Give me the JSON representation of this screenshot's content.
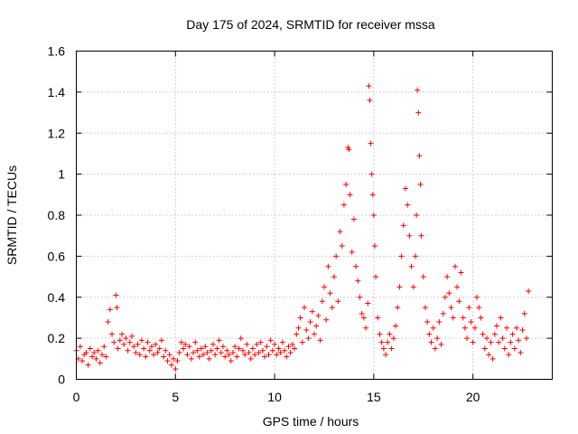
{
  "chart_data": {
    "type": "scatter",
    "title": "Day 175 of 2024, SRMTID for receiver mssa",
    "xlabel": "GPS time / hours",
    "ylabel": "SRMTID / TECUs",
    "xlim": [
      0,
      24
    ],
    "ylim": [
      0,
      1.6
    ],
    "xticks": [
      0,
      5,
      10,
      15,
      20
    ],
    "xtick_labels": [
      "0",
      "5",
      "10",
      "15",
      "20"
    ],
    "yticks": [
      0,
      0.2,
      0.4,
      0.6,
      0.8,
      1.0,
      1.2,
      1.4,
      1.6
    ],
    "ytick_labels": [
      "0",
      "0.2",
      "0.4",
      "0.6",
      "0.8",
      "1",
      "1.2",
      "1.4",
      "1.6"
    ],
    "grid": true,
    "marker": "+",
    "color": "#ff0000",
    "series": [
      {
        "name": "SRMTID",
        "points": [
          [
            0.0,
            0.14
          ],
          [
            0.1,
            0.1
          ],
          [
            0.2,
            0.16
          ],
          [
            0.3,
            0.09
          ],
          [
            0.4,
            0.12
          ],
          [
            0.5,
            0.13
          ],
          [
            0.6,
            0.07
          ],
          [
            0.7,
            0.15
          ],
          [
            0.8,
            0.11
          ],
          [
            0.9,
            0.13
          ],
          [
            1.0,
            0.1
          ],
          [
            1.1,
            0.14
          ],
          [
            1.2,
            0.08
          ],
          [
            1.3,
            0.12
          ],
          [
            1.4,
            0.16
          ],
          [
            1.5,
            0.11
          ],
          [
            1.6,
            0.28
          ],
          [
            1.7,
            0.34
          ],
          [
            1.8,
            0.22
          ],
          [
            1.9,
            0.18
          ],
          [
            2.0,
            0.41
          ],
          [
            2.05,
            0.35
          ],
          [
            2.1,
            0.15
          ],
          [
            2.2,
            0.19
          ],
          [
            2.3,
            0.22
          ],
          [
            2.4,
            0.17
          ],
          [
            2.5,
            0.2
          ],
          [
            2.6,
            0.14
          ],
          [
            2.7,
            0.18
          ],
          [
            2.8,
            0.21
          ],
          [
            2.9,
            0.16
          ],
          [
            3.0,
            0.13
          ],
          [
            3.1,
            0.17
          ],
          [
            3.2,
            0.12
          ],
          [
            3.3,
            0.19
          ],
          [
            3.4,
            0.15
          ],
          [
            3.5,
            0.11
          ],
          [
            3.6,
            0.18
          ],
          [
            3.7,
            0.14
          ],
          [
            3.8,
            0.16
          ],
          [
            3.9,
            0.12
          ],
          [
            4.0,
            0.17
          ],
          [
            4.1,
            0.13
          ],
          [
            4.2,
            0.15
          ],
          [
            4.3,
            0.19
          ],
          [
            4.4,
            0.11
          ],
          [
            4.5,
            0.14
          ],
          [
            4.6,
            0.09
          ],
          [
            4.7,
            0.12
          ],
          [
            4.8,
            0.07
          ],
          [
            4.9,
            0.1
          ],
          [
            5.0,
            0.05
          ],
          [
            5.1,
            0.09
          ],
          [
            5.2,
            0.13
          ],
          [
            5.3,
            0.18
          ],
          [
            5.4,
            0.15
          ],
          [
            5.5,
            0.17
          ],
          [
            5.6,
            0.12
          ],
          [
            5.7,
            0.16
          ],
          [
            5.8,
            0.1
          ],
          [
            5.9,
            0.13
          ],
          [
            6.0,
            0.18
          ],
          [
            6.1,
            0.14
          ],
          [
            6.2,
            0.11
          ],
          [
            6.3,
            0.15
          ],
          [
            6.4,
            0.12
          ],
          [
            6.5,
            0.16
          ],
          [
            6.6,
            0.13
          ],
          [
            6.7,
            0.1
          ],
          [
            6.8,
            0.14
          ],
          [
            6.9,
            0.17
          ],
          [
            7.0,
            0.12
          ],
          [
            7.1,
            0.15
          ],
          [
            7.2,
            0.19
          ],
          [
            7.3,
            0.13
          ],
          [
            7.4,
            0.16
          ],
          [
            7.5,
            0.11
          ],
          [
            7.6,
            0.14
          ],
          [
            7.7,
            0.12
          ],
          [
            7.8,
            0.09
          ],
          [
            7.9,
            0.13
          ],
          [
            8.0,
            0.16
          ],
          [
            8.1,
            0.11
          ],
          [
            8.2,
            0.15
          ],
          [
            8.3,
            0.2
          ],
          [
            8.4,
            0.14
          ],
          [
            8.5,
            0.12
          ],
          [
            8.6,
            0.17
          ],
          [
            8.7,
            0.13
          ],
          [
            8.8,
            0.1
          ],
          [
            8.9,
            0.15
          ],
          [
            9.0,
            0.12
          ],
          [
            9.1,
            0.17
          ],
          [
            9.2,
            0.13
          ],
          [
            9.3,
            0.18
          ],
          [
            9.4,
            0.14
          ],
          [
            9.5,
            0.11
          ],
          [
            9.6,
            0.16
          ],
          [
            9.7,
            0.12
          ],
          [
            9.8,
            0.19
          ],
          [
            9.9,
            0.14
          ],
          [
            10.0,
            0.17
          ],
          [
            10.1,
            0.12
          ],
          [
            10.2,
            0.15
          ],
          [
            10.3,
            0.13
          ],
          [
            10.4,
            0.18
          ],
          [
            10.5,
            0.14
          ],
          [
            10.6,
            0.11
          ],
          [
            10.7,
            0.16
          ],
          [
            10.8,
            0.13
          ],
          [
            10.9,
            0.17
          ],
          [
            11.0,
            0.15
          ],
          [
            11.1,
            0.22
          ],
          [
            11.2,
            0.25
          ],
          [
            11.3,
            0.3
          ],
          [
            11.4,
            0.18
          ],
          [
            11.5,
            0.35
          ],
          [
            11.6,
            0.24
          ],
          [
            11.7,
            0.2
          ],
          [
            11.8,
            0.28
          ],
          [
            11.9,
            0.33
          ],
          [
            12.0,
            0.22
          ],
          [
            12.1,
            0.26
          ],
          [
            12.2,
            0.31
          ],
          [
            12.3,
            0.19
          ],
          [
            12.4,
            0.38
          ],
          [
            12.5,
            0.45
          ],
          [
            12.6,
            0.29
          ],
          [
            12.7,
            0.55
          ],
          [
            12.8,
            0.42
          ],
          [
            12.9,
            0.35
          ],
          [
            13.0,
            0.5
          ],
          [
            13.1,
            0.6
          ],
          [
            13.2,
            0.38
          ],
          [
            13.3,
            0.72
          ],
          [
            13.4,
            0.65
          ],
          [
            13.5,
            0.85
          ],
          [
            13.6,
            0.95
          ],
          [
            13.7,
            1.13
          ],
          [
            13.75,
            1.12
          ],
          [
            13.8,
            0.9
          ],
          [
            13.9,
            0.62
          ],
          [
            14.0,
            0.78
          ],
          [
            14.1,
            0.55
          ],
          [
            14.2,
            0.48
          ],
          [
            14.3,
            0.4
          ],
          [
            14.4,
            0.32
          ],
          [
            14.5,
            0.3
          ],
          [
            14.6,
            0.25
          ],
          [
            14.7,
            0.37
          ],
          [
            14.75,
            1.43
          ],
          [
            14.8,
            1.36
          ],
          [
            14.85,
            1.15
          ],
          [
            14.9,
            1.0
          ],
          [
            14.95,
            0.9
          ],
          [
            15.0,
            0.8
          ],
          [
            15.05,
            0.65
          ],
          [
            15.1,
            0.5
          ],
          [
            15.2,
            0.3
          ],
          [
            15.3,
            0.22
          ],
          [
            15.4,
            0.18
          ],
          [
            15.5,
            0.15
          ],
          [
            15.6,
            0.12
          ],
          [
            15.7,
            0.18
          ],
          [
            15.8,
            0.22
          ],
          [
            15.9,
            0.15
          ],
          [
            16.0,
            0.2
          ],
          [
            16.1,
            0.26
          ],
          [
            16.2,
            0.35
          ],
          [
            16.3,
            0.45
          ],
          [
            16.4,
            0.6
          ],
          [
            16.5,
            0.75
          ],
          [
            16.6,
            0.93
          ],
          [
            16.7,
            0.85
          ],
          [
            16.8,
            0.7
          ],
          [
            16.9,
            0.55
          ],
          [
            17.0,
            0.45
          ],
          [
            17.1,
            0.6
          ],
          [
            17.15,
            0.8
          ],
          [
            17.2,
            1.41
          ],
          [
            17.25,
            1.3
          ],
          [
            17.3,
            1.09
          ],
          [
            17.35,
            0.95
          ],
          [
            17.4,
            0.7
          ],
          [
            17.5,
            0.5
          ],
          [
            17.6,
            0.35
          ],
          [
            17.7,
            0.28
          ],
          [
            17.8,
            0.22
          ],
          [
            17.9,
            0.18
          ],
          [
            18.0,
            0.25
          ],
          [
            18.1,
            0.15
          ],
          [
            18.2,
            0.2
          ],
          [
            18.3,
            0.28
          ],
          [
            18.4,
            0.17
          ],
          [
            18.5,
            0.32
          ],
          [
            18.6,
            0.4
          ],
          [
            18.7,
            0.5
          ],
          [
            18.8,
            0.42
          ],
          [
            18.9,
            0.35
          ],
          [
            19.0,
            0.3
          ],
          [
            19.1,
            0.55
          ],
          [
            19.2,
            0.45
          ],
          [
            19.3,
            0.38
          ],
          [
            19.4,
            0.52
          ],
          [
            19.5,
            0.3
          ],
          [
            19.6,
            0.25
          ],
          [
            19.7,
            0.2
          ],
          [
            19.8,
            0.35
          ],
          [
            19.9,
            0.28
          ],
          [
            20.0,
            0.18
          ],
          [
            20.1,
            0.25
          ],
          [
            20.2,
            0.4
          ],
          [
            20.3,
            0.35
          ],
          [
            20.4,
            0.3
          ],
          [
            20.5,
            0.22
          ],
          [
            20.6,
            0.15
          ],
          [
            20.7,
            0.2
          ],
          [
            20.8,
            0.12
          ],
          [
            20.9,
            0.18
          ],
          [
            21.0,
            0.1
          ],
          [
            21.1,
            0.22
          ],
          [
            21.2,
            0.26
          ],
          [
            21.3,
            0.18
          ],
          [
            21.4,
            0.3
          ],
          [
            21.5,
            0.2
          ],
          [
            21.6,
            0.15
          ],
          [
            21.7,
            0.25
          ],
          [
            21.8,
            0.12
          ],
          [
            21.9,
            0.18
          ],
          [
            22.0,
            0.22
          ],
          [
            22.1,
            0.15
          ],
          [
            22.2,
            0.25
          ],
          [
            22.3,
            0.19
          ],
          [
            22.4,
            0.13
          ],
          [
            22.5,
            0.24
          ],
          [
            22.6,
            0.32
          ],
          [
            22.7,
            0.2
          ],
          [
            22.8,
            0.43
          ]
        ]
      }
    ]
  }
}
